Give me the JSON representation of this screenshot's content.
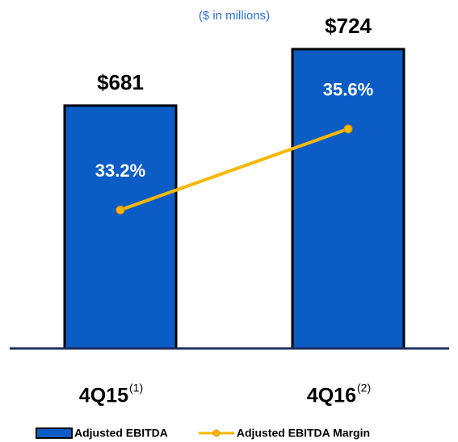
{
  "chart_data": {
    "type": "bar",
    "subtitle": "($ in millions)",
    "categories": [
      "4Q15",
      "4Q16"
    ],
    "category_footnotes": [
      "(1)",
      "(2)"
    ],
    "ylim": [
      496,
      743
    ],
    "y2lim": [
      29.1,
      38.7
    ],
    "series": [
      {
        "name": "Adjusted EBITDA",
        "type": "bar",
        "color": "#0b5cc5",
        "values": [
          681,
          724
        ],
        "value_labels": [
          "$681",
          "$724"
        ]
      },
      {
        "name": "Adjusted EBITDA Margin",
        "type": "line",
        "axis": "y2",
        "color": "#f5b800",
        "values": [
          33.2,
          35.6
        ],
        "value_labels": [
          "33.2%",
          "35.6%"
        ]
      }
    ]
  }
}
